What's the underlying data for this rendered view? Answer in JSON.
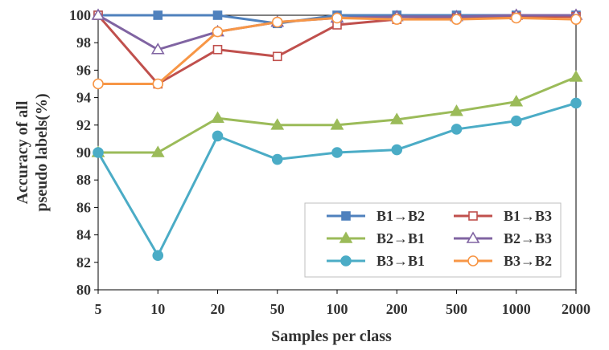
{
  "chart_data": {
    "type": "line",
    "title": "",
    "xlabel": "Samples per class",
    "ylabel_lines": [
      "Accuracy of all",
      "pseudo labels(%)"
    ],
    "categories": [
      "5",
      "10",
      "20",
      "50",
      "100",
      "200",
      "500",
      "1000",
      "2000"
    ],
    "ylim": [
      80,
      100
    ],
    "yticks": [
      80,
      82,
      84,
      86,
      88,
      90,
      92,
      94,
      96,
      98,
      100
    ],
    "grid": false,
    "legend_position": "bottom-right",
    "series": [
      {
        "name": "B1→B2",
        "color": "#4f81bd",
        "marker": "square-filled",
        "values": [
          100,
          100,
          100,
          99.4,
          100,
          100,
          100,
          100,
          100
        ]
      },
      {
        "name": "B1→B3",
        "color": "#c0504d",
        "marker": "square-open",
        "values": [
          100,
          95,
          97.5,
          97,
          99.3,
          99.7,
          99.8,
          99.9,
          99.9
        ]
      },
      {
        "name": "B2→B1",
        "color": "#9bbb59",
        "marker": "triangle-filled",
        "values": [
          90,
          90,
          92.5,
          92,
          92,
          92.4,
          93,
          93.7,
          95.5
        ]
      },
      {
        "name": "B2→B3",
        "color": "#8064a2",
        "marker": "triangle-open",
        "values": [
          100,
          97.5,
          98.8,
          99.5,
          99.8,
          99.9,
          99.9,
          100,
          100
        ]
      },
      {
        "name": "B3→B1",
        "color": "#4bacc6",
        "marker": "circle-filled",
        "values": [
          90,
          82.5,
          91.2,
          89.5,
          90,
          90.2,
          91.7,
          92.3,
          93.6
        ]
      },
      {
        "name": "B3→B2",
        "color": "#f79646",
        "marker": "circle-open",
        "values": [
          95,
          95,
          98.8,
          99.5,
          99.8,
          99.7,
          99.7,
          99.8,
          99.7
        ]
      }
    ]
  }
}
